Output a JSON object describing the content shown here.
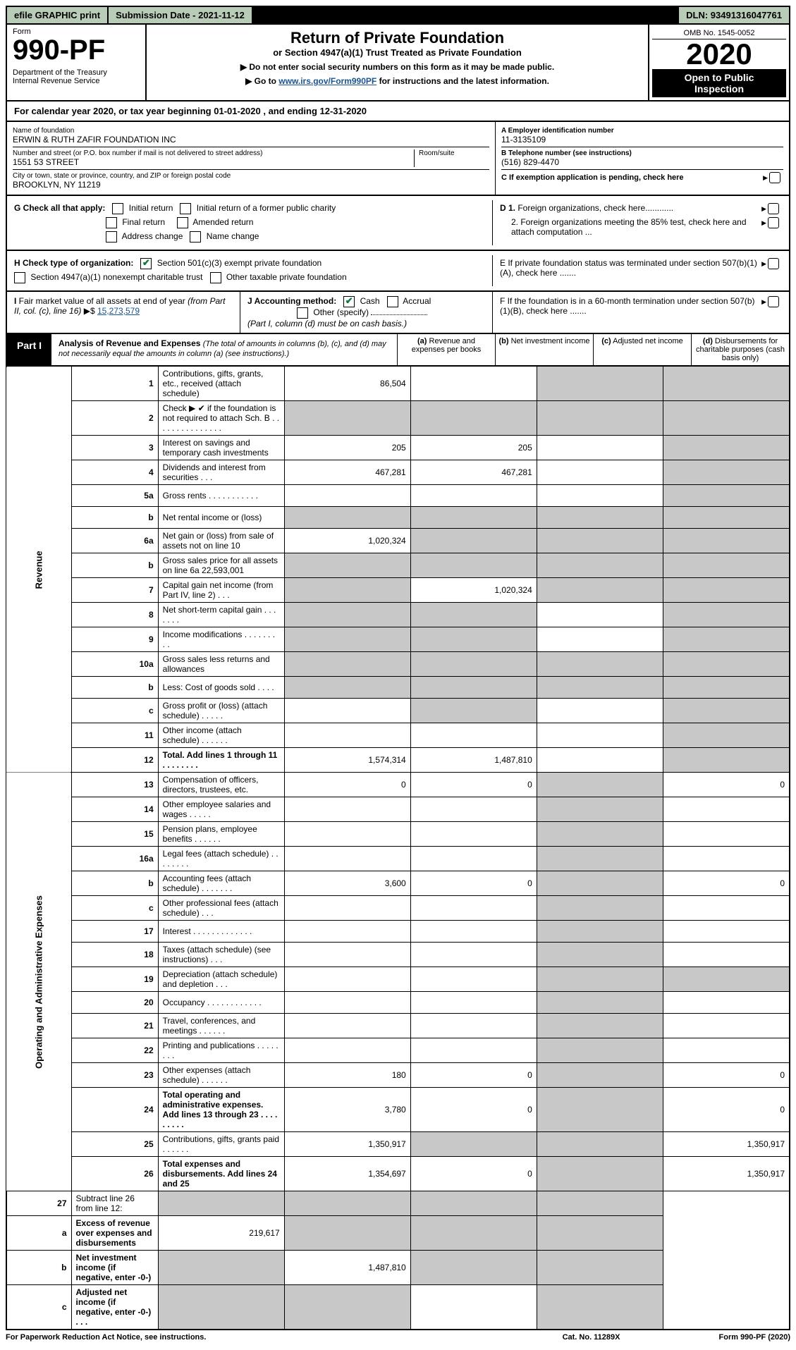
{
  "topbar": {
    "efile": "efile GRAPHIC print",
    "submission": "Submission Date - 2021-11-12",
    "dln": "DLN: 93491316047761"
  },
  "header": {
    "form_label": "Form",
    "form_num": "990-PF",
    "dept": "Department of the Treasury\nInternal Revenue Service",
    "title": "Return of Private Foundation",
    "subtitle": "or Section 4947(a)(1) Trust Treated as Private Foundation",
    "note1": "▶ Do not enter social security numbers on this form as it may be made public.",
    "note2_pre": "▶ Go to ",
    "note2_link": "www.irs.gov/Form990PF",
    "note2_post": " for instructions and the latest information.",
    "omb": "OMB No. 1545-0052",
    "year": "2020",
    "open": "Open to Public Inspection"
  },
  "cal_year": {
    "text_pre": "For calendar year 2020, or tax year beginning ",
    "begin": "01-01-2020",
    "text_mid": " , and ending ",
    "end": "12-31-2020"
  },
  "id": {
    "name_label": "Name of foundation",
    "name": "ERWIN & RUTH ZAFIR FOUNDATION INC",
    "addr_label": "Number and street (or P.O. box number if mail is not delivered to street address)",
    "room_label": "Room/suite",
    "addr": "1551 53 STREET",
    "city_label": "City or town, state or province, country, and ZIP or foreign postal code",
    "city": "BROOKLYN, NY  11219",
    "ein_label": "A Employer identification number",
    "ein": "11-3135109",
    "tel_label": "B Telephone number (see instructions)",
    "tel": "(516) 829-4470",
    "c_label": "C If exemption application is pending, check here"
  },
  "checks": {
    "g_label": "G Check all that apply:",
    "g_items": [
      "Initial return",
      "Initial return of a former public charity",
      "Final return",
      "Amended return",
      "Address change",
      "Name change"
    ],
    "h_label": "H Check type of organization:",
    "h_501c3": "Section 501(c)(3) exempt private foundation",
    "h_4947": "Section 4947(a)(1) nonexempt charitable trust",
    "h_other": "Other taxable private foundation",
    "d1": "D 1. Foreign organizations, check here............",
    "d2": "2. Foreign organizations meeting the 85% test, check here and attach computation ...",
    "e": "E  If private foundation status was terminated under section 507(b)(1)(A), check here .......",
    "f": "F  If the foundation is in a 60-month termination under section 507(b)(1)(B), check here ......."
  },
  "hi": {
    "i_label": "I Fair market value of all assets at end of year (from Part II, col. (c), line 16)",
    "i_val": "15,273,579",
    "j_label": "J Accounting method:",
    "j_cash": "Cash",
    "j_accrual": "Accrual",
    "j_other": "Other (specify)",
    "j_note": "(Part I, column (d) must be on cash basis.)"
  },
  "part": {
    "tag": "Part I",
    "title": "Analysis of Revenue and Expenses",
    "ital": "(The total of amounts in columns (b), (c), and (d) may not necessarily equal the amounts in column (a) (see instructions).)",
    "col_a": "(a)  Revenue and expenses per books",
    "col_b": "(b)  Net investment income",
    "col_c": "(c)  Adjusted net income",
    "col_d": "(d)  Disbursements for charitable purposes (cash basis only)"
  },
  "sides": {
    "revenue": "Revenue",
    "expenses": "Operating and Administrative Expenses"
  },
  "rows": [
    {
      "n": "1",
      "d": "Contributions, gifts, grants, etc., received (attach schedule)",
      "a": "86,504",
      "b": "",
      "c": "s",
      "d_": "s"
    },
    {
      "n": "2",
      "d": "Check ▶ ✔ if the foundation is not required to attach Sch. B    .  .  .  .  .  .  .  .  .  .  .  .  .  .  .",
      "a": "s",
      "b": "s",
      "c": "s",
      "d_": "s"
    },
    {
      "n": "3",
      "d": "Interest on savings and temporary cash investments",
      "a": "205",
      "b": "205",
      "c": "",
      "d_": "s"
    },
    {
      "n": "4",
      "d": "Dividends and interest from securities    .   .   .",
      "a": "467,281",
      "b": "467,281",
      "c": "",
      "d_": "s"
    },
    {
      "n": "5a",
      "d": "Gross rents    .   .   .   .   .   .   .   .   .   .   .",
      "a": "",
      "b": "",
      "c": "",
      "d_": "s"
    },
    {
      "n": "b",
      "d": "Net rental income or (loss)  ",
      "a": "s",
      "b": "s",
      "c": "s",
      "d_": "s"
    },
    {
      "n": "6a",
      "d": "Net gain or (loss) from sale of assets not on line 10",
      "a": "1,020,324",
      "b": "s",
      "c": "s",
      "d_": "s"
    },
    {
      "n": "b",
      "d": "Gross sales price for all assets on line 6a           22,593,001",
      "a": "s",
      "b": "s",
      "c": "s",
      "d_": "s"
    },
    {
      "n": "7",
      "d": "Capital gain net income (from Part IV, line 2)    .   .   .",
      "a": "s",
      "b": "1,020,324",
      "c": "s",
      "d_": "s"
    },
    {
      "n": "8",
      "d": "Net short-term capital gain    .   .   .   .   .   .   .",
      "a": "s",
      "b": "s",
      "c": "",
      "d_": "s"
    },
    {
      "n": "9",
      "d": "Income modifications  .   .   .   .   .   .   .   .   .",
      "a": "s",
      "b": "s",
      "c": "",
      "d_": "s"
    },
    {
      "n": "10a",
      "d": "Gross sales less returns and allowances",
      "a": "s",
      "b": "s",
      "c": "s",
      "d_": "s"
    },
    {
      "n": "b",
      "d": "Less: Cost of goods sold    .   .   .   .",
      "a": "s",
      "b": "s",
      "c": "s",
      "d_": "s"
    },
    {
      "n": "c",
      "d": "Gross profit or (loss) (attach schedule)    .   .   .   .   .",
      "a": "",
      "b": "s",
      "c": "",
      "d_": "s"
    },
    {
      "n": "11",
      "d": "Other income (attach schedule)    .   .   .   .   .   .",
      "a": "",
      "b": "",
      "c": "",
      "d_": "s"
    },
    {
      "n": "12",
      "d": "Total. Add lines 1 through 11    .   .   .   .   .   .   .   .",
      "a": "1,574,314",
      "b": "1,487,810",
      "c": "",
      "d_": "s",
      "bold": true
    }
  ],
  "exp_rows": [
    {
      "n": "13",
      "d": "Compensation of officers, directors, trustees, etc.",
      "a": "0",
      "b": "0",
      "c": "s",
      "d_": "0"
    },
    {
      "n": "14",
      "d": "Other employee salaries and wages    .   .   .   .   .",
      "a": "",
      "b": "",
      "c": "s",
      "d_": ""
    },
    {
      "n": "15",
      "d": "Pension plans, employee benefits   .   .   .   .   .   .",
      "a": "",
      "b": "",
      "c": "s",
      "d_": ""
    },
    {
      "n": "16a",
      "d": "Legal fees (attach schedule)  .   .   .   .   .   .   .   .",
      "a": "",
      "b": "",
      "c": "s",
      "d_": ""
    },
    {
      "n": "b",
      "d": "Accounting fees (attach schedule)  .   .   .   .   .   .   .",
      "a": "3,600",
      "b": "0",
      "c": "s",
      "d_": "0"
    },
    {
      "n": "c",
      "d": "Other professional fees (attach schedule)    .   .   .",
      "a": "",
      "b": "",
      "c": "s",
      "d_": ""
    },
    {
      "n": "17",
      "d": "Interest  .   .   .   .   .   .   .   .   .   .   .   .   .",
      "a": "",
      "b": "",
      "c": "s",
      "d_": ""
    },
    {
      "n": "18",
      "d": "Taxes (attach schedule) (see instructions)    .   .   .",
      "a": "",
      "b": "",
      "c": "s",
      "d_": ""
    },
    {
      "n": "19",
      "d": "Depreciation (attach schedule) and depletion    .   .   .",
      "a": "",
      "b": "",
      "c": "s",
      "d_": "s"
    },
    {
      "n": "20",
      "d": "Occupancy  .   .   .   .   .   .   .   .   .   .   .   .",
      "a": "",
      "b": "",
      "c": "s",
      "d_": ""
    },
    {
      "n": "21",
      "d": "Travel, conferences, and meetings  .   .   .   .   .   .",
      "a": "",
      "b": "",
      "c": "s",
      "d_": ""
    },
    {
      "n": "22",
      "d": "Printing and publications  .   .   .   .   .   .   .   .",
      "a": "",
      "b": "",
      "c": "s",
      "d_": ""
    },
    {
      "n": "23",
      "d": "Other expenses (attach schedule)  .   .   .   .   .   .",
      "a": "180",
      "b": "0",
      "c": "s",
      "d_": "0"
    },
    {
      "n": "24",
      "d": "Total operating and administrative expenses. Add lines 13 through 23    .   .   .   .   .   .   .   .   .",
      "a": "3,780",
      "b": "0",
      "c": "s",
      "d_": "0",
      "bold": true
    },
    {
      "n": "25",
      "d": "Contributions, gifts, grants paid    .   .   .   .   .   .",
      "a": "1,350,917",
      "b": "s",
      "c": "s",
      "d_": "1,350,917"
    },
    {
      "n": "26",
      "d": "Total expenses and disbursements. Add lines 24 and 25",
      "a": "1,354,697",
      "b": "0",
      "c": "s",
      "d_": "1,350,917",
      "bold": true
    }
  ],
  "sub_rows": [
    {
      "n": "27",
      "d": "Subtract line 26 from line 12:",
      "a": "s",
      "b": "s",
      "c": "s",
      "d_": "s"
    },
    {
      "n": "a",
      "d": "Excess of revenue over expenses and disbursements",
      "a": "219,617",
      "b": "s",
      "c": "s",
      "d_": "s",
      "bold": true
    },
    {
      "n": "b",
      "d": "Net investment income (if negative, enter -0-)",
      "a": "s",
      "b": "1,487,810",
      "c": "s",
      "d_": "s",
      "bold": true
    },
    {
      "n": "c",
      "d": "Adjusted net income (if negative, enter -0-)   .   .   .",
      "a": "s",
      "b": "s",
      "c": "",
      "d_": "s",
      "bold": true
    }
  ],
  "footer": {
    "left": "For Paperwork Reduction Act Notice, see instructions.",
    "mid": "Cat. No. 11289X",
    "right": "Form 990-PF (2020)"
  }
}
